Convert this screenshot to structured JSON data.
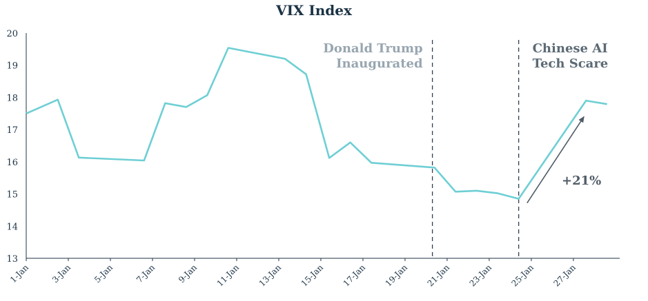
{
  "chart_data": {
    "type": "line",
    "title": "VIX Index",
    "xlabel": "",
    "ylabel": "",
    "ylim": [
      13,
      20
    ],
    "yticks": [
      13,
      14,
      15,
      16,
      17,
      18,
      19,
      20
    ],
    "xlim": [
      1,
      29.2
    ],
    "xticks": [
      {
        "day": 1,
        "label": "1-Jan"
      },
      {
        "day": 3,
        "label": "3-Jan"
      },
      {
        "day": 5,
        "label": "5-Jan"
      },
      {
        "day": 7,
        "label": "7-Jan"
      },
      {
        "day": 9,
        "label": "9-Jan"
      },
      {
        "day": 11,
        "label": "11-Jan"
      },
      {
        "day": 13,
        "label": "13-Jan"
      },
      {
        "day": 15,
        "label": "15-Jan"
      },
      {
        "day": 17,
        "label": "17-Jan"
      },
      {
        "day": 19,
        "label": "19-Jan"
      },
      {
        "day": 21,
        "label": "21-Jan"
      },
      {
        "day": 23,
        "label": "23-Jan"
      },
      {
        "day": 25,
        "label": "25-Jan"
      },
      {
        "day": 27,
        "label": "27-Jan"
      }
    ],
    "grid": false,
    "line_color": "#6ecfd4",
    "series": [
      {
        "x": [
          1,
          2.5,
          3.5,
          6.6,
          7.6,
          8.6,
          9.6,
          10.6,
          13.3,
          14.3,
          15.4,
          16.4,
          17.4,
          20.4,
          21.4,
          22.4,
          23.4,
          24.4,
          27.6,
          28.6
        ],
        "y": [
          17.5,
          17.93,
          16.13,
          16.04,
          17.82,
          17.7,
          18.07,
          19.54,
          19.2,
          18.72,
          16.12,
          16.6,
          15.97,
          15.82,
          15.07,
          15.1,
          15.02,
          14.85,
          17.9,
          17.79
        ]
      }
    ],
    "events": [
      {
        "x": 20.3,
        "label_lines": [
          "Donald Trump",
          "Inaugurated"
        ]
      },
      {
        "x": 24.4,
        "label_lines": [
          "Chinese AI",
          "Tech Scare"
        ]
      }
    ],
    "change_annotation": {
      "label": "+21%",
      "from": [
        24.8,
        14.72
      ],
      "to": [
        27.5,
        17.4
      ]
    }
  }
}
